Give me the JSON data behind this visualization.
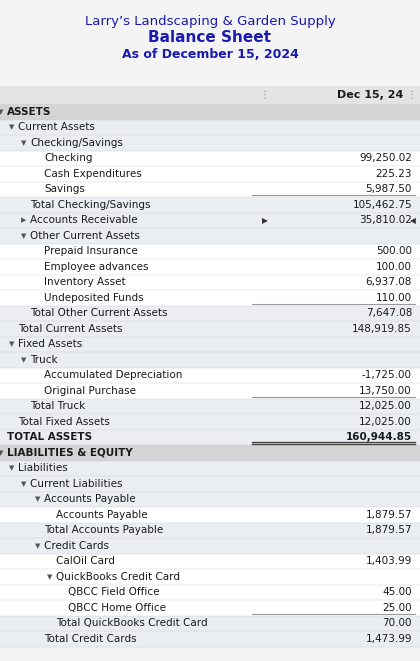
{
  "title1": "Larry’s Landscaping & Garden Supply",
  "title2": "Balance Sheet",
  "title3": "As of December 15, 2024",
  "col_header": "Dec 15, 24",
  "title_color": "#1a1ab0",
  "bg_light": "#eaeef3",
  "bg_gray": "#d4d4d4",
  "bg_white": "#ffffff",
  "bg_page": "#f4f4f4",
  "rows": [
    {
      "label": "ASSETS",
      "value": "",
      "indent": 0,
      "bold": true,
      "bg": "#d4d4d4",
      "arrow": "down",
      "separator": false
    },
    {
      "label": "Current Assets",
      "value": "",
      "indent": 1,
      "bold": false,
      "bg": "#eaeef3",
      "arrow": "down",
      "separator": false
    },
    {
      "label": "Checking/Savings",
      "value": "",
      "indent": 2,
      "bold": false,
      "bg": "#eaeef3",
      "arrow": "down",
      "separator": false
    },
    {
      "label": "Checking",
      "value": "99,250.02",
      "indent": 3,
      "bold": false,
      "bg": "#ffffff",
      "arrow": "none",
      "separator": false
    },
    {
      "label": "Cash Expenditures",
      "value": "225.23",
      "indent": 3,
      "bold": false,
      "bg": "#ffffff",
      "arrow": "none",
      "separator": false
    },
    {
      "label": "Savings",
      "value": "5,987.50",
      "indent": 3,
      "bold": false,
      "bg": "#ffffff",
      "arrow": "none",
      "separator": true
    },
    {
      "label": "Total Checking/Savings",
      "value": "105,462.75",
      "indent": 2,
      "bold": false,
      "bg": "#eaeef3",
      "arrow": "none",
      "separator": false
    },
    {
      "label": "Accounts Receivable",
      "value": "35,810.02",
      "indent": 2,
      "bold": false,
      "bg": "#eaeef3",
      "arrow": "right",
      "separator": false,
      "right_arrow": true
    },
    {
      "label": "Other Current Assets",
      "value": "",
      "indent": 2,
      "bold": false,
      "bg": "#eaeef3",
      "arrow": "down",
      "separator": false
    },
    {
      "label": "Prepaid Insurance",
      "value": "500.00",
      "indent": 3,
      "bold": false,
      "bg": "#ffffff",
      "arrow": "none",
      "separator": false
    },
    {
      "label": "Employee advances",
      "value": "100.00",
      "indent": 3,
      "bold": false,
      "bg": "#ffffff",
      "arrow": "none",
      "separator": false
    },
    {
      "label": "Inventory Asset",
      "value": "6,937.08",
      "indent": 3,
      "bold": false,
      "bg": "#ffffff",
      "arrow": "none",
      "separator": false
    },
    {
      "label": "Undeposited Funds",
      "value": "110.00",
      "indent": 3,
      "bold": false,
      "bg": "#ffffff",
      "arrow": "none",
      "separator": true
    },
    {
      "label": "Total Other Current Assets",
      "value": "7,647.08",
      "indent": 2,
      "bold": false,
      "bg": "#eaeef3",
      "arrow": "none",
      "separator": false
    },
    {
      "label": "Total Current Assets",
      "value": "148,919.85",
      "indent": 1,
      "bold": false,
      "bg": "#eaeef3",
      "arrow": "none",
      "separator": false
    },
    {
      "label": "Fixed Assets",
      "value": "",
      "indent": 1,
      "bold": false,
      "bg": "#eaeef3",
      "arrow": "down",
      "separator": false
    },
    {
      "label": "Truck",
      "value": "",
      "indent": 2,
      "bold": false,
      "bg": "#eaeef3",
      "arrow": "down",
      "separator": false
    },
    {
      "label": "Accumulated Depreciation",
      "value": "-1,725.00",
      "indent": 3,
      "bold": false,
      "bg": "#ffffff",
      "arrow": "none",
      "separator": false
    },
    {
      "label": "Original Purchase",
      "value": "13,750.00",
      "indent": 3,
      "bold": false,
      "bg": "#ffffff",
      "arrow": "none",
      "separator": true
    },
    {
      "label": "Total Truck",
      "value": "12,025.00",
      "indent": 2,
      "bold": false,
      "bg": "#eaeef3",
      "arrow": "none",
      "separator": false
    },
    {
      "label": "Total Fixed Assets",
      "value": "12,025.00",
      "indent": 1,
      "bold": false,
      "bg": "#eaeef3",
      "arrow": "none",
      "separator": false
    },
    {
      "label": "TOTAL ASSETS",
      "value": "160,944.85",
      "indent": 0,
      "bold": true,
      "bg": "#eaeef3",
      "arrow": "none",
      "separator": false,
      "double_ul": true
    },
    {
      "label": "LIABILITIES & EQUITY",
      "value": "",
      "indent": 0,
      "bold": true,
      "bg": "#d4d4d4",
      "arrow": "down",
      "separator": false
    },
    {
      "label": "Liabilities",
      "value": "",
      "indent": 1,
      "bold": false,
      "bg": "#eaeef3",
      "arrow": "down",
      "separator": false
    },
    {
      "label": "Current Liabilities",
      "value": "",
      "indent": 2,
      "bold": false,
      "bg": "#eaeef3",
      "arrow": "down",
      "separator": false
    },
    {
      "label": "Accounts Payable",
      "value": "",
      "indent": 3,
      "bold": false,
      "bg": "#eaeef3",
      "arrow": "down",
      "separator": false
    },
    {
      "label": "Accounts Payable",
      "value": "1,879.57",
      "indent": 4,
      "bold": false,
      "bg": "#ffffff",
      "arrow": "none",
      "separator": false
    },
    {
      "label": "Total Accounts Payable",
      "value": "1,879.57",
      "indent": 3,
      "bold": false,
      "bg": "#eaeef3",
      "arrow": "none",
      "separator": false
    },
    {
      "label": "Credit Cards",
      "value": "",
      "indent": 3,
      "bold": false,
      "bg": "#eaeef3",
      "arrow": "down",
      "separator": false
    },
    {
      "label": "CalOil Card",
      "value": "1,403.99",
      "indent": 4,
      "bold": false,
      "bg": "#ffffff",
      "arrow": "none",
      "separator": false
    },
    {
      "label": "QuickBooks Credit Card",
      "value": "",
      "indent": 4,
      "bold": false,
      "bg": "#ffffff",
      "arrow": "down",
      "separator": false
    },
    {
      "label": "QBCC Field Office",
      "value": "45.00",
      "indent": 5,
      "bold": false,
      "bg": "#ffffff",
      "arrow": "none",
      "separator": false
    },
    {
      "label": "QBCC Home Office",
      "value": "25.00",
      "indent": 5,
      "bold": false,
      "bg": "#ffffff",
      "arrow": "none",
      "separator": true
    },
    {
      "label": "Total QuickBooks Credit Card",
      "value": "70.00",
      "indent": 4,
      "bold": false,
      "bg": "#eaeef3",
      "arrow": "none",
      "separator": false
    },
    {
      "label": "Total Credit Cards",
      "value": "1,473.99",
      "indent": 3,
      "bold": false,
      "bg": "#eaeef3",
      "arrow": "none",
      "separator": false
    }
  ]
}
